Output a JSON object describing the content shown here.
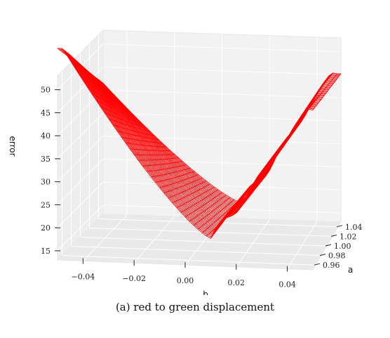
{
  "chart_data": {
    "type": "surface",
    "title": "",
    "caption": "(a) red to green displacement",
    "xlabel": "b",
    "ylabel": "a",
    "zlabel": "error",
    "x_ticks": [
      "−0.04",
      "−0.02",
      "0.00",
      "0.02",
      "0.04"
    ],
    "x_tick_values": [
      -0.04,
      -0.02,
      0.0,
      0.02,
      0.04
    ],
    "y_ticks": [
      "0.96",
      "0.98",
      "1.00",
      "1.02",
      "1.04"
    ],
    "y_tick_values": [
      0.96,
      0.98,
      1.0,
      1.02,
      1.04
    ],
    "z_ticks": [
      "15",
      "20",
      "25",
      "30",
      "35",
      "40",
      "45",
      "50"
    ],
    "z_tick_values": [
      15,
      20,
      25,
      30,
      35,
      40,
      45,
      50
    ],
    "xlim": [
      -0.05,
      0.05
    ],
    "ylim": [
      0.95,
      1.05
    ],
    "zlim": [
      13,
      53
    ],
    "surface": {
      "description_values": "wireframe error surface, minimum near b=0.01, a=1.04",
      "min_error": 16.5,
      "min_at": {
        "b": 0.01,
        "a": 1.04
      },
      "edge_values": {
        "b_-0.05_a_0.95": 52,
        "b_-0.05_a_1.05": 40,
        "b_0.05_a_0.95": 44,
        "b_0.05_a_1.05": 41
      }
    },
    "color": "#ff0000",
    "grid": true
  }
}
